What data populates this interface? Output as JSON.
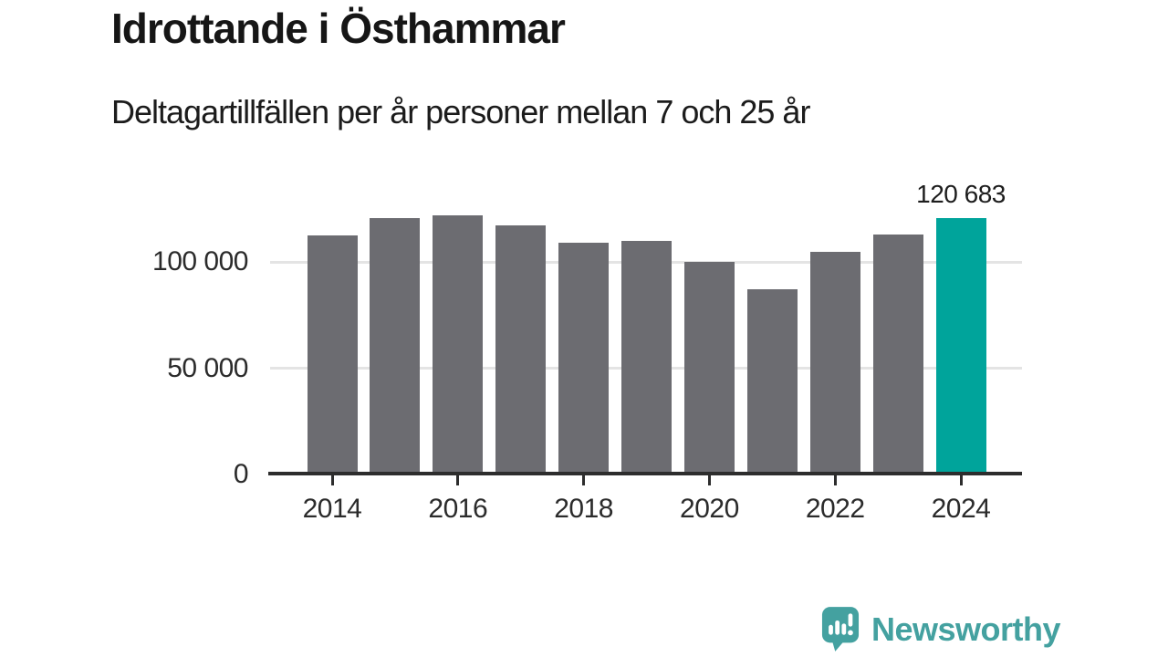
{
  "title": "Idrottande i Östhammar",
  "subtitle": "Deltagartillfällen per år personer mellan 7 och 25 år",
  "colors": {
    "bar": "#6c6c71",
    "highlight": "#00a49b",
    "gridline": "#e4e4e4",
    "axis": "#2d2d2d",
    "tick_text": "#2b2b2b",
    "annotation_text": "#1d1d1d",
    "brand": "#44a1a0"
  },
  "chart_data": {
    "type": "bar",
    "title": "Idrottande i Östhammar",
    "subtitle": "Deltagartillfällen per år personer mellan 7 och 25 år",
    "categories": [
      2014,
      2015,
      2016,
      2017,
      2018,
      2019,
      2020,
      2021,
      2022,
      2023,
      2024
    ],
    "values": [
      112400,
      120400,
      122100,
      117000,
      109000,
      110000,
      100000,
      87000,
      104700,
      112900,
      120683
    ],
    "highlight_index": 10,
    "annotation": {
      "index": 10,
      "label": "120 683"
    },
    "ylim": [
      0,
      130000
    ],
    "yticks": [
      {
        "value": 0,
        "label": "0"
      },
      {
        "value": 50000,
        "label": "50 000"
      },
      {
        "value": 100000,
        "label": "100 000"
      }
    ],
    "xtick_labels": [
      "2014",
      "2016",
      "2018",
      "2020",
      "2022",
      "2024"
    ],
    "grid": true,
    "legend_position": "none"
  },
  "footer": {
    "brand": "Newsworthy",
    "logo": "newsworthy-speech-bubble-chart-icon"
  }
}
